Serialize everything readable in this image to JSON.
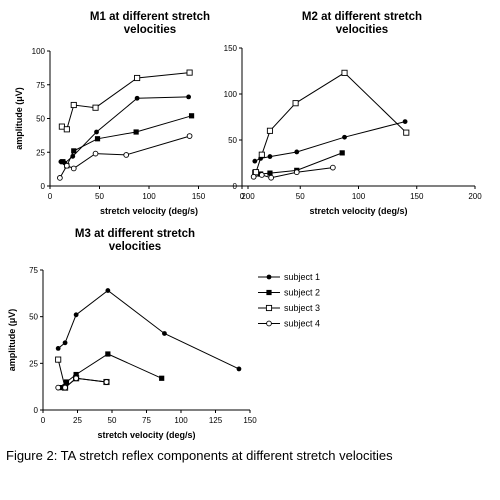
{
  "caption": "Figure 2: TA stretch reflex components at different stretch velocities",
  "legend": [
    "subject 1",
    "subject 2",
    "subject 3",
    "subject 4"
  ],
  "chart_data": [
    {
      "type": "line",
      "title": "M1 at different stretch velocities",
      "title_lines": [
        "M1 at different stretch",
        "velocities"
      ],
      "xlabel": "stretch velocity (deg/s)",
      "ylabel": "amplitude (μV)",
      "xlim": [
        0,
        200
      ],
      "ylim": [
        0,
        100
      ],
      "xticks": [
        0,
        50,
        100,
        150,
        200
      ],
      "yticks": [
        0,
        25,
        50,
        75,
        100
      ],
      "series": [
        {
          "name": "subject 1",
          "x": [
            11,
            15,
            23,
            47,
            88,
            140
          ],
          "y": [
            18,
            17,
            22,
            40,
            65,
            66
          ]
        },
        {
          "name": "subject 2",
          "x": [
            13,
            17,
            24,
            48,
            87,
            143
          ],
          "y": [
            18,
            15,
            26,
            35,
            40,
            52
          ]
        },
        {
          "name": "subject 3",
          "x": [
            12,
            17,
            24,
            46,
            88,
            141
          ],
          "y": [
            44,
            42,
            60,
            58,
            80,
            84
          ]
        },
        {
          "name": "subject 4",
          "x": [
            10,
            17,
            24,
            46,
            77,
            141
          ],
          "y": [
            6,
            15,
            13,
            24,
            23,
            37
          ]
        }
      ]
    },
    {
      "type": "line",
      "title": "M2 at different stretch velocities",
      "title_lines": [
        "M2 at different stretch",
        "velocities"
      ],
      "xlabel": "stretch velocity (deg/s)",
      "ylabel": "",
      "xlim": [
        0,
        200
      ],
      "ylim": [
        0,
        150
      ],
      "xticks": [
        0,
        50,
        100,
        150,
        200
      ],
      "yticks": [
        0,
        50,
        100,
        150
      ],
      "series": [
        {
          "name": "subject 1",
          "x": [
            11,
            16,
            24,
            47,
            88,
            140
          ],
          "y": [
            27,
            30,
            32,
            37,
            53,
            70
          ]
        },
        {
          "name": "subject 2",
          "x": [
            11,
            16,
            24,
            47,
            86
          ],
          "y": [
            15,
            13,
            14,
            17,
            36
          ]
        },
        {
          "name": "subject 3",
          "x": [
            12,
            17,
            24,
            46,
            88,
            141
          ],
          "y": [
            15,
            34,
            60,
            90,
            123,
            58
          ]
        },
        {
          "name": "subject 4",
          "x": [
            10,
            17,
            25,
            47,
            78
          ],
          "y": [
            10,
            12,
            9,
            15,
            20
          ]
        }
      ]
    },
    {
      "type": "line",
      "title": "M3 at different stretch velocities",
      "title_lines": [
        "M3 at different stretch",
        "velocities"
      ],
      "xlabel": "stretch velocity (deg/s)",
      "ylabel": "amplitude (μV)",
      "xlim": [
        0,
        150
      ],
      "ylim": [
        0,
        75
      ],
      "xticks": [
        0,
        25,
        50,
        75,
        100,
        125,
        150
      ],
      "yticks": [
        0,
        25,
        50,
        75
      ],
      "series": [
        {
          "name": "subject 1",
          "x": [
            11,
            16,
            24,
            47,
            88,
            142
          ],
          "y": [
            33,
            36,
            51,
            64,
            41,
            22
          ]
        },
        {
          "name": "subject 2",
          "x": [
            12,
            17,
            24,
            47,
            86
          ],
          "y": [
            12,
            15,
            19,
            30,
            17
          ]
        },
        {
          "name": "subject 3",
          "x": [
            11,
            16,
            24,
            46
          ],
          "y": [
            27,
            12,
            17,
            15
          ]
        },
        {
          "name": "subject 4",
          "x": [
            11,
            16,
            24,
            46
          ],
          "y": [
            12,
            12,
            17,
            15
          ]
        }
      ]
    }
  ]
}
